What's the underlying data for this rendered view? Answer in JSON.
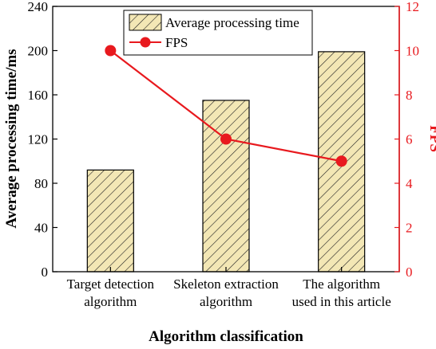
{
  "colors": {
    "axis_left": "#000000",
    "axis_right": "#e8191e",
    "bar_fill": "#f3e7b5",
    "bar_hatch": "#222222",
    "line": "#e8191e",
    "marker": "#e8191e"
  },
  "chart_data": {
    "type": "bar",
    "categories": [
      [
        "Target detection",
        "algorithm"
      ],
      [
        "Skeleton extraction",
        "algorithm"
      ],
      [
        "The algorithm",
        "used in this article"
      ]
    ],
    "series": [
      {
        "name": "Average processing time",
        "type": "bar",
        "axis": "left",
        "values": [
          92,
          155,
          199
        ]
      },
      {
        "name": "FPS",
        "type": "line",
        "axis": "right",
        "values": [
          10,
          6,
          5
        ]
      }
    ],
    "xlabel": "Algorithm classification",
    "ylabel": "Average processing time/ms",
    "ylabel_right": "FPS",
    "ylim": [
      0,
      240
    ],
    "ylim_right": [
      0,
      12
    ],
    "yticks": [
      "0",
      "40",
      "80",
      "120",
      "160",
      "200",
      "240"
    ],
    "yticks_right": [
      "0",
      "2",
      "4",
      "6",
      "8",
      "10",
      "12"
    ],
    "legend_position": "top-center",
    "grid": false
  }
}
